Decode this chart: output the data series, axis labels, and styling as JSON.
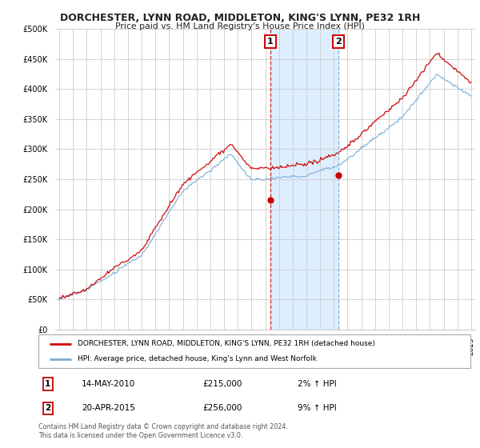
{
  "title": "DORCHESTER, LYNN ROAD, MIDDLETON, KING'S LYNN, PE32 1RH",
  "subtitle": "Price paid vs. HM Land Registry's House Price Index (HPI)",
  "legend_line1": "DORCHESTER, LYNN ROAD, MIDDLETON, KING'S LYNN, PE32 1RH (detached house)",
  "legend_line2": "HPI: Average price, detached house, King's Lynn and West Norfolk",
  "footer": "Contains HM Land Registry data © Crown copyright and database right 2024.\nThis data is licensed under the Open Government Licence v3.0.",
  "sale1_date": "14-MAY-2010",
  "sale1_price": "£215,000",
  "sale1_hpi": "2% ↑ HPI",
  "sale2_date": "20-APR-2015",
  "sale2_price": "£256,000",
  "sale2_hpi": "9% ↑ HPI",
  "sale1_year": 2010.37,
  "sale1_value": 215000,
  "sale2_year": 2015.31,
  "sale2_value": 256000,
  "ylim": [
    0,
    500000
  ],
  "xlim_start": 1994.7,
  "xlim_end": 2025.3,
  "red_color": "#cc0000",
  "blue_color": "#7aaed6",
  "vline1_color": "#cc0000",
  "vline2_color": "#7aaed6",
  "bg_color": "#ffffff",
  "grid_color": "#cccccc",
  "span_color": "#ddeeff"
}
